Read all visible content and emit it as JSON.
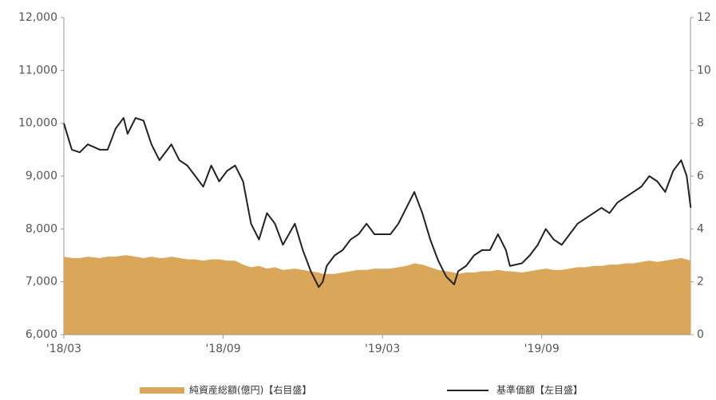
{
  "chart_data": {
    "type": "line",
    "x": [
      0,
      0.3,
      0.6,
      0.9,
      1.35,
      1.65,
      1.95,
      2.25,
      2.4,
      2.7,
      3,
      3.3,
      3.6,
      3.75,
      4.05,
      4.35,
      4.65,
      4.95,
      5.25,
      5.55,
      5.85,
      6.15,
      6.45,
      6.75,
      7.05,
      7.35,
      7.65,
      7.95,
      8.25,
      8.7,
      9,
      9.3,
      9.6,
      9.75,
      9.9,
      10.2,
      10.5,
      10.8,
      11.1,
      11.4,
      11.7,
      12,
      12.3,
      12.6,
      12.9,
      13.2,
      13.5,
      13.8,
      14.1,
      14.4,
      14.7,
      14.85,
      15.15,
      15.45,
      15.75,
      16.05,
      16.35,
      16.65,
      16.8,
      17.25,
      17.55,
      17.85,
      18.15,
      18.45,
      18.75,
      19.05,
      19.35,
      19.65,
      19.95,
      20.25,
      20.55,
      20.85,
      21.15,
      21.45,
      21.75,
      22.05,
      22.35,
      22.65,
      22.95,
      23.25,
      23.46,
      23.61
    ],
    "series": [
      {
        "name": "純資産総額(億円)【右目盛】",
        "type": "area",
        "axis": "y2",
        "color": "#d9a65a",
        "values": [
          2.95,
          2.9,
          2.9,
          2.95,
          2.9,
          2.95,
          2.95,
          3.0,
          3.0,
          2.95,
          2.9,
          2.95,
          2.9,
          2.9,
          2.95,
          2.9,
          2.85,
          2.85,
          2.8,
          2.85,
          2.85,
          2.8,
          2.8,
          2.65,
          2.55,
          2.6,
          2.5,
          2.55,
          2.45,
          2.5,
          2.45,
          2.4,
          2.35,
          2.3,
          2.3,
          2.3,
          2.35,
          2.4,
          2.45,
          2.45,
          2.5,
          2.5,
          2.5,
          2.55,
          2.6,
          2.7,
          2.65,
          2.55,
          2.45,
          2.4,
          2.35,
          2.3,
          2.35,
          2.35,
          2.4,
          2.4,
          2.45,
          2.4,
          2.4,
          2.35,
          2.4,
          2.45,
          2.5,
          2.45,
          2.45,
          2.5,
          2.55,
          2.55,
          2.6,
          2.6,
          2.65,
          2.65,
          2.7,
          2.7,
          2.75,
          2.8,
          2.75,
          2.8,
          2.85,
          2.9,
          2.85,
          2.8
        ]
      },
      {
        "name": "基準価額【左目盛】",
        "type": "line",
        "color": "#222222",
        "values": [
          10000,
          9500,
          9450,
          9600,
          9500,
          9500,
          9900,
          10100,
          9800,
          10100,
          10050,
          9600,
          9300,
          9400,
          9600,
          9300,
          9200,
          9000,
          8800,
          9200,
          8900,
          9100,
          9200,
          8900,
          8100,
          7800,
          8300,
          8100,
          7700,
          8100,
          7600,
          7200,
          6900,
          7000,
          7300,
          7500,
          7600,
          7800,
          7900,
          8100,
          7900,
          7900,
          7900,
          8100,
          8400,
          8700,
          8300,
          7800,
          7400,
          7100,
          6950,
          7200,
          7300,
          7500,
          7600,
          7600,
          7900,
          7600,
          7300,
          7350,
          7500,
          7700,
          8000,
          7800,
          7700,
          7900,
          8100,
          8200,
          8300,
          8400,
          8300,
          8500,
          8600,
          8700,
          8800,
          9000,
          8900,
          8700,
          9100,
          9300,
          9000,
          8400
        ]
      }
    ],
    "xlim": [
      0,
      23.6
    ],
    "xticks": [
      {
        "value": 0,
        "label": "'18/03"
      },
      {
        "value": 6,
        "label": "'18/09"
      },
      {
        "value": 12,
        "label": "'19/03"
      },
      {
        "value": 18,
        "label": "'19/09"
      }
    ],
    "ylim": [
      6000,
      12000
    ],
    "yticks": [
      {
        "value": 6000,
        "label": "6,000"
      },
      {
        "value": 7000,
        "label": "7,000"
      },
      {
        "value": 8000,
        "label": "8,000"
      },
      {
        "value": 9000,
        "label": "9,000"
      },
      {
        "value": 10000,
        "label": "10,000"
      },
      {
        "value": 11000,
        "label": "11,000"
      },
      {
        "value": 12000,
        "label": "12,000"
      }
    ],
    "y2lim": [
      0,
      12
    ],
    "y2ticks": [
      0,
      2,
      4,
      6,
      8,
      10,
      12
    ]
  }
}
